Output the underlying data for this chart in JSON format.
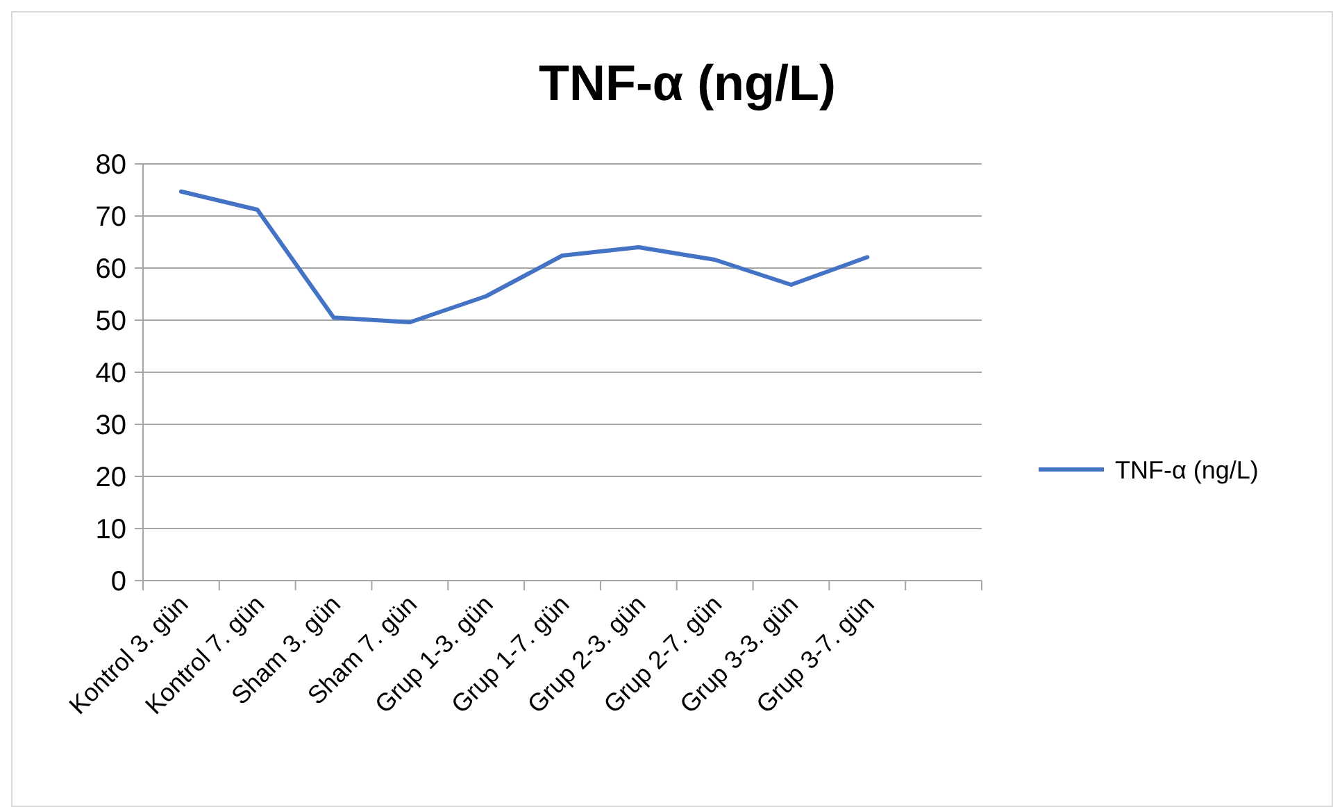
{
  "chart_data": {
    "type": "line",
    "title": "TNF-α (ng/L)",
    "categories": [
      "Kontrol 3. gün",
      "Kontrol 7. gün",
      "Sham 3. gün",
      "Sham 7. gün",
      "Grup 1-3. gün",
      "Grup 1-7. gün",
      "Grup 2-3. gün",
      "Grup 2-7. gün",
      "Grup 3-3. gün",
      "Grup 3-7. gün",
      null
    ],
    "series": [
      {
        "name": "TNF-α (ng/L)",
        "color": "#4472c4",
        "values": [
          74.7,
          71.2,
          50.5,
          49.6,
          54.6,
          62.4,
          64,
          61.6,
          56.8,
          62.1,
          null
        ]
      }
    ],
    "ylim": [
      0,
      80
    ],
    "yticks": [
      0,
      10,
      20,
      30,
      40,
      50,
      60,
      70,
      80
    ],
    "grid": "y",
    "legend": "right",
    "marker": "none",
    "line_style": "solid"
  }
}
